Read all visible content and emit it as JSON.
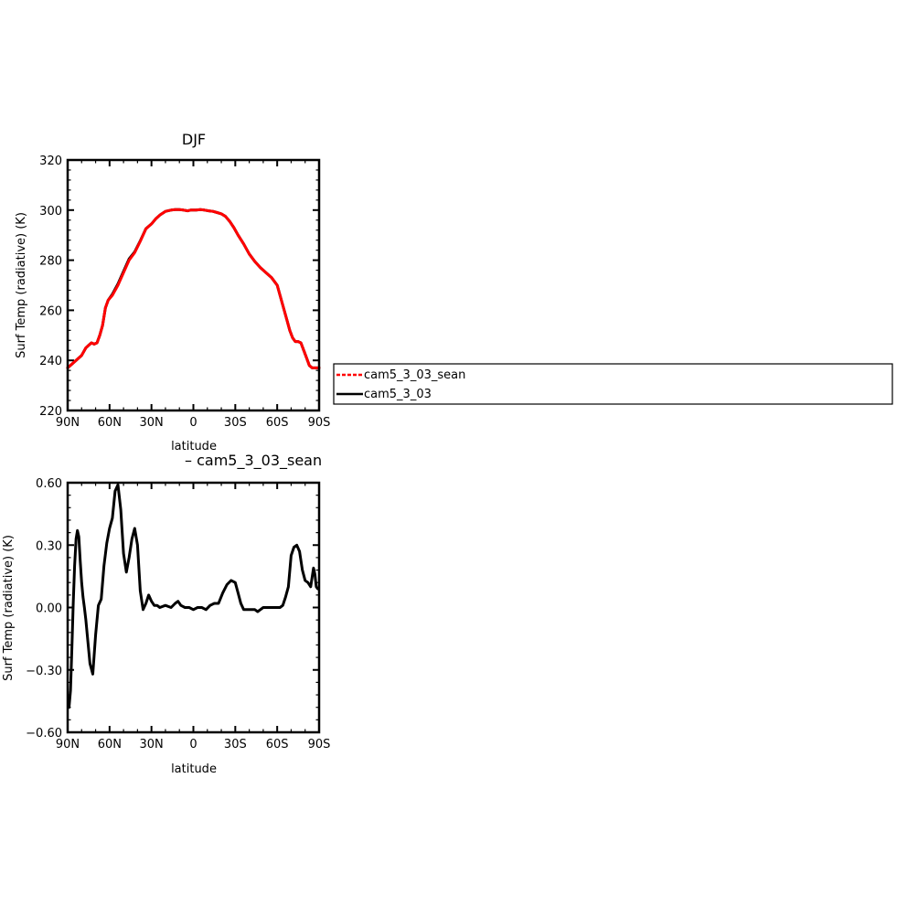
{
  "chart_data": [
    {
      "type": "line",
      "title": "DJF",
      "xlabel": "latitude",
      "ylabel": "Surf Temp (radiative) (K)",
      "xlim": [
        -90,
        90
      ],
      "ylim": [
        220,
        320
      ],
      "xticks": [
        -90,
        -60,
        -30,
        0,
        30,
        60,
        90
      ],
      "xtick_labels": [
        "90N",
        "60N",
        "30N",
        "0",
        "30S",
        "60S",
        "90S"
      ],
      "yticks": [
        220,
        240,
        260,
        280,
        300,
        320
      ],
      "ytick_labels": [
        "220",
        "240",
        "260",
        "280",
        "300",
        "320"
      ],
      "legend": {
        "placement": "right",
        "entries": [
          "cam5_3_03_sean",
          "cam5_3_03"
        ]
      },
      "x": [
        -90,
        -85,
        -80,
        -77,
        -75,
        -73,
        -71,
        -69,
        -67,
        -65,
        -63,
        -61,
        -58,
        -54,
        -50,
        -46,
        -42,
        -38,
        -34,
        -30,
        -27,
        -24,
        -20,
        -16,
        -13,
        -10,
        -7,
        -4,
        -2,
        0,
        2,
        5,
        8,
        11,
        14,
        17,
        20,
        23,
        26,
        29,
        32,
        36,
        40,
        44,
        48,
        52,
        56,
        60,
        64,
        67,
        69,
        71,
        73,
        75,
        77,
        79,
        81,
        83,
        85,
        87,
        89,
        90
      ],
      "series": [
        {
          "name": "cam5_3_03_sean",
          "color": "#ff0000",
          "values": [
            237,
            239.5,
            242,
            245,
            246,
            247,
            246.5,
            247,
            250,
            254,
            261,
            264,
            266,
            270,
            275,
            280,
            283,
            287.5,
            292.5,
            294.5,
            296.5,
            298,
            299.5,
            300,
            300.2,
            300.2,
            300,
            299.7,
            300,
            300,
            300,
            300.2,
            300,
            299.7,
            299.5,
            299,
            298.5,
            297.5,
            295.5,
            293,
            290,
            286.5,
            282.5,
            279.5,
            277,
            275,
            273,
            270,
            262,
            256,
            252,
            249,
            247.5,
            247.5,
            247,
            244,
            241,
            238,
            237,
            237,
            237,
            237
          ]
        },
        {
          "name": "cam5_3_03",
          "color": "#000000",
          "values": [
            237,
            239.5,
            242,
            245,
            246,
            247,
            246.5,
            247,
            250,
            254,
            261,
            264,
            266.4,
            270.5,
            275.5,
            280.5,
            283.3,
            287.7,
            292.6,
            294.5,
            296.5,
            298,
            299.5,
            300,
            300.2,
            300.2,
            300,
            299.7,
            300,
            300,
            300,
            300.2,
            300,
            299.7,
            299.5,
            299,
            298.5,
            297.5,
            295.5,
            293,
            290,
            286.5,
            282.5,
            279.5,
            277,
            275,
            273,
            270,
            262,
            256,
            252,
            249,
            247.5,
            247.5,
            247,
            244,
            241,
            238,
            237,
            237,
            237,
            237
          ]
        }
      ]
    },
    {
      "type": "line",
      "title": "– cam5_3_03_sean",
      "xlabel": "latitude",
      "ylabel": "Surf Temp (radiative) (K)",
      "xlim": [
        -90,
        90
      ],
      "ylim": [
        -0.6,
        0.6
      ],
      "xticks": [
        -90,
        -60,
        -30,
        0,
        30,
        60,
        90
      ],
      "xtick_labels": [
        "90N",
        "60N",
        "30N",
        "0",
        "30S",
        "60S",
        "90S"
      ],
      "yticks": [
        -0.6,
        -0.3,
        0,
        0.3,
        0.6
      ],
      "ytick_labels": [
        "−0.60",
        "−0.30",
        "0.00",
        "0.30",
        "0.60"
      ],
      "x": [
        -89,
        -88,
        -87,
        -86,
        -85,
        -84,
        -83,
        -82,
        -81,
        -80,
        -79,
        -78,
        -77,
        -76,
        -75,
        -74,
        -72,
        -70,
        -68,
        -66,
        -64,
        -62,
        -60,
        -58,
        -56,
        -54,
        -52,
        -50,
        -48,
        -46,
        -44,
        -42,
        -40,
        -38,
        -36,
        -34,
        -32,
        -30,
        -28,
        -26,
        -24,
        -20,
        -16,
        -13,
        -11,
        -9,
        -6,
        -3,
        0,
        3,
        6,
        9,
        12,
        15,
        18,
        21,
        24,
        27,
        30,
        32,
        34,
        36,
        40,
        44,
        46,
        48,
        50,
        54,
        58,
        62,
        64,
        66,
        68,
        70,
        72,
        74,
        76,
        78,
        80,
        82,
        84,
        86,
        87,
        88,
        89
      ],
      "series": [
        {
          "name": "",
          "color": "#000000",
          "values": [
            -0.48,
            -0.4,
            -0.2,
            0.02,
            0.2,
            0.33,
            0.37,
            0.34,
            0.22,
            0.12,
            0.05,
            0.0,
            -0.06,
            -0.13,
            -0.2,
            -0.27,
            -0.32,
            -0.13,
            0.01,
            0.04,
            0.2,
            0.31,
            0.38,
            0.43,
            0.56,
            0.59,
            0.47,
            0.26,
            0.17,
            0.24,
            0.33,
            0.38,
            0.3,
            0.08,
            -0.01,
            0.02,
            0.06,
            0.03,
            0.01,
            0.01,
            0.0,
            0.01,
            0.0,
            0.02,
            0.03,
            0.01,
            0.0,
            0.0,
            -0.01,
            0.0,
            0.0,
            -0.01,
            0.01,
            0.02,
            0.02,
            0.07,
            0.11,
            0.13,
            0.12,
            0.07,
            0.02,
            -0.01,
            -0.01,
            -0.01,
            -0.02,
            -0.01,
            0.0,
            0.0,
            0.0,
            0.0,
            0.01,
            0.05,
            0.1,
            0.25,
            0.29,
            0.3,
            0.27,
            0.18,
            0.13,
            0.12,
            0.1,
            0.19,
            0.16,
            0.1,
            0.09
          ]
        }
      ]
    }
  ]
}
